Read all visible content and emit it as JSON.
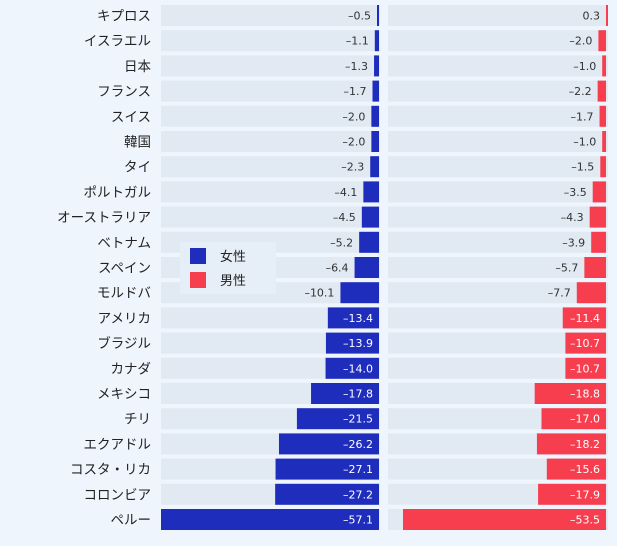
{
  "chart_data": {
    "type": "bar",
    "orientation": "horizontal",
    "categories": [
      "キプロス",
      "イスラエル",
      "日本",
      "フランス",
      "スイス",
      "韓国",
      "タイ",
      "ポルトガル",
      "オーストラリア",
      "ベトナム",
      "スペイン",
      "モルドバ",
      "アメリカ",
      "ブラジル",
      "カナダ",
      "メキシコ",
      "チリ",
      "エクアドル",
      "コスタ・リカ",
      "コロンビア",
      "ペルー"
    ],
    "series": [
      {
        "name": "女性",
        "color": "#1f2dbd",
        "values": [
          -0.5,
          -1.1,
          -1.3,
          -1.7,
          -2.0,
          -2.0,
          -2.3,
          -4.1,
          -4.5,
          -5.2,
          -6.4,
          -10.1,
          -13.4,
          -13.9,
          -14.0,
          -17.8,
          -21.5,
          -26.2,
          -27.1,
          -27.2,
          -57.1
        ],
        "labels": [
          "–0.5",
          "–1.1",
          "–1.3",
          "–1.7",
          "–2.0",
          "–2.0",
          "–2.3",
          "–4.1",
          "–4.5",
          "–5.2",
          "–6.4",
          "–10.1",
          "–13.4",
          "–13.9",
          "–14.0",
          "–17.8",
          "–21.5",
          "–26.2",
          "–27.1",
          "–27.2",
          "–57.1"
        ]
      },
      {
        "name": "男性",
        "color": "#f73e4f",
        "values": [
          0.3,
          -2.0,
          -1.0,
          -2.2,
          -1.7,
          -1.0,
          -1.5,
          -3.5,
          -4.3,
          -3.9,
          -5.7,
          -7.7,
          -11.4,
          -10.7,
          -10.7,
          -18.8,
          -17.0,
          -18.2,
          -15.6,
          -17.9,
          -53.5
        ],
        "labels": [
          "0.3",
          "–2.0",
          "–1.0",
          "–2.2",
          "–1.7",
          "–1.0",
          "–1.5",
          "–3.5",
          "–4.3",
          "–3.9",
          "–5.7",
          "–7.7",
          "–11.4",
          "–10.7",
          "–10.7",
          "–18.8",
          "–17.0",
          "–18.2",
          "–15.6",
          "–17.9",
          "–53.5"
        ]
      }
    ],
    "legend_position": "center-left",
    "background_color": "#eef5fd",
    "row_color": "#e1e9f3"
  }
}
